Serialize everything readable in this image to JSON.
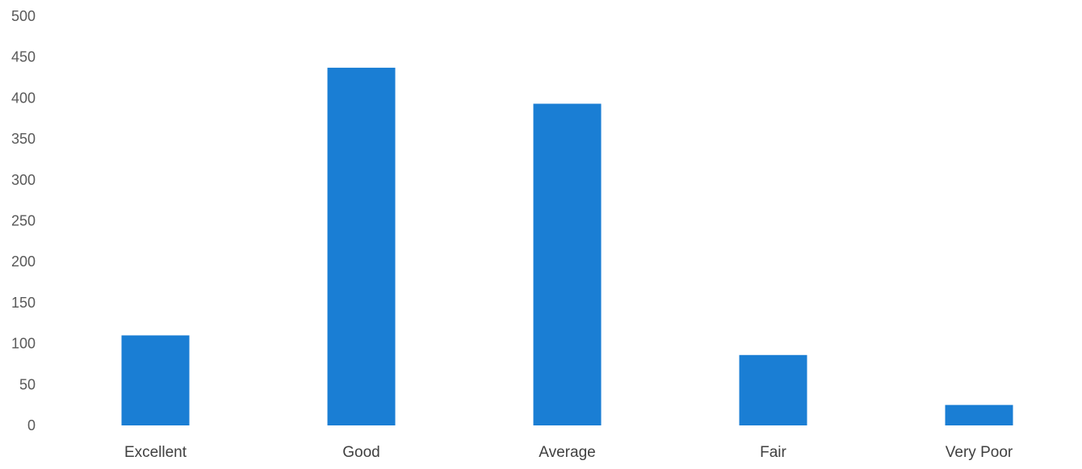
{
  "chart_data": {
    "type": "bar",
    "title": "",
    "xlabel": "",
    "ylabel": "",
    "categories": [
      "Excellent",
      "Good",
      "Average",
      "Fair",
      "Very Poor"
    ],
    "values": [
      110,
      437,
      393,
      86,
      25
    ],
    "ylim": [
      0,
      500
    ],
    "yticks": [
      0,
      50,
      100,
      150,
      200,
      250,
      300,
      350,
      400,
      450,
      500
    ],
    "grid": false,
    "legend": "none",
    "bar_color": "#1a7ed4"
  }
}
